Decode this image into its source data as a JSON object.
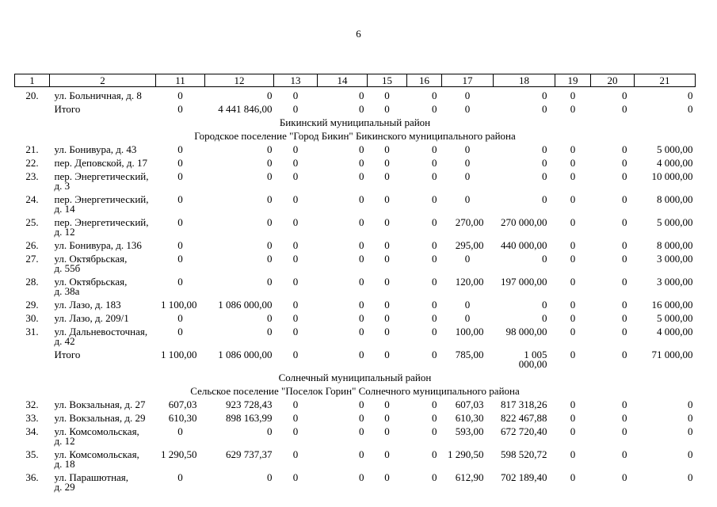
{
  "page_number": "6",
  "table": {
    "columns": [
      "1",
      "2",
      "11",
      "12",
      "13",
      "14",
      "15",
      "16",
      "17",
      "18",
      "19",
      "20",
      "21"
    ],
    "rows": [
      {
        "type": "data",
        "num": "20.",
        "address": "ул. Больничная, д. 8",
        "values": [
          "0",
          "0",
          "0",
          "0",
          "0",
          "0",
          "0",
          "0",
          "0",
          "0",
          "0"
        ]
      },
      {
        "type": "total",
        "label": "Итого",
        "values": [
          "0",
          "4 441 846,00",
          "0",
          "0",
          "0",
          "0",
          "0",
          "0",
          "0",
          "0",
          "0"
        ]
      },
      {
        "type": "section",
        "text": "Бикинский муниципальный район"
      },
      {
        "type": "section",
        "text": "Городское поселение \"Город Бикин\" Бикинского муниципального района"
      },
      {
        "type": "data",
        "num": "21.",
        "address": "ул. Бонивура, д. 43",
        "values": [
          "0",
          "0",
          "0",
          "0",
          "0",
          "0",
          "0",
          "0",
          "0",
          "0",
          "5 000,00"
        ]
      },
      {
        "type": "data",
        "num": "22.",
        "address": "пер. Деповской, д. 17",
        "values": [
          "0",
          "0",
          "0",
          "0",
          "0",
          "0",
          "0",
          "0",
          "0",
          "0",
          "4 000,00"
        ]
      },
      {
        "type": "data",
        "num": "23.",
        "address": "пер. Энергетический,\nд. 3",
        "values": [
          "0",
          "0",
          "0",
          "0",
          "0",
          "0",
          "0",
          "0",
          "0",
          "0",
          "10 000,00"
        ]
      },
      {
        "type": "data",
        "num": "24.",
        "address": "пер. Энергетический,\nд. 14",
        "values": [
          "0",
          "0",
          "0",
          "0",
          "0",
          "0",
          "0",
          "0",
          "0",
          "0",
          "8 000,00"
        ]
      },
      {
        "type": "data",
        "num": "25.",
        "address": "пер. Энергетический,\nд. 12",
        "values": [
          "0",
          "0",
          "0",
          "0",
          "0",
          "0",
          "270,00",
          "270 000,00",
          "0",
          "0",
          "5 000,00"
        ]
      },
      {
        "type": "data",
        "num": "26.",
        "address": "ул. Бонивура, д. 136",
        "values": [
          "0",
          "0",
          "0",
          "0",
          "0",
          "0",
          "295,00",
          "440 000,00",
          "0",
          "0",
          "8 000,00"
        ]
      },
      {
        "type": "data",
        "num": "27.",
        "address": "ул. Октябрьская,\nд. 55б",
        "values": [
          "0",
          "0",
          "0",
          "0",
          "0",
          "0",
          "0",
          "0",
          "0",
          "0",
          "3 000,00"
        ]
      },
      {
        "type": "data",
        "num": "28.",
        "address": "ул. Октябрьская,\nд. 38а",
        "values": [
          "0",
          "0",
          "0",
          "0",
          "0",
          "0",
          "120,00",
          "197 000,00",
          "0",
          "0",
          "3 000,00"
        ]
      },
      {
        "type": "data",
        "num": "29.",
        "address": "ул. Лазо, д. 183",
        "values": [
          "1 100,00",
          "1 086 000,00",
          "0",
          "0",
          "0",
          "0",
          "0",
          "0",
          "0",
          "0",
          "16 000,00"
        ]
      },
      {
        "type": "data",
        "num": "30.",
        "address": "ул. Лазо, д. 209/1",
        "values": [
          "0",
          "0",
          "0",
          "0",
          "0",
          "0",
          "0",
          "0",
          "0",
          "0",
          "5 000,00"
        ]
      },
      {
        "type": "data",
        "num": "31.",
        "address": "ул. Дальневосточная,\nд. 42",
        "values": [
          "0",
          "0",
          "0",
          "0",
          "0",
          "0",
          "100,00",
          "98 000,00",
          "0",
          "0",
          "4 000,00"
        ]
      },
      {
        "type": "total",
        "label": "Итого",
        "values": [
          "1 100,00",
          "1 086 000,00",
          "0",
          "0",
          "0",
          "0",
          "785,00",
          "1 005 000,00",
          "0",
          "0",
          "71 000,00"
        ]
      },
      {
        "type": "section",
        "text": "Солнечный муниципальный  район"
      },
      {
        "type": "section",
        "text": "Сельское поселение \"Поселок Горин\" Солнечного муниципального района"
      },
      {
        "type": "data",
        "num": "32.",
        "address": "ул. Вокзальная, д. 27",
        "values": [
          "607,03",
          "923 728,43",
          "0",
          "0",
          "0",
          "0",
          "607,03",
          "817 318,26",
          "0",
          "0",
          "0"
        ]
      },
      {
        "type": "data",
        "num": "33.",
        "address": "ул. Вокзальная, д. 29",
        "values": [
          "610,30",
          "898 163,99",
          "0",
          "0",
          "0",
          "0",
          "610,30",
          "822 467,88",
          "0",
          "0",
          "0"
        ]
      },
      {
        "type": "data",
        "num": "34.",
        "address": "ул. Комсомольская,\nд. 12",
        "values": [
          "0",
          "0",
          "0",
          "0",
          "0",
          "0",
          "593,00",
          "672 720,40",
          "0",
          "0",
          "0"
        ]
      },
      {
        "type": "data",
        "num": "35.",
        "address": "ул. Комсомольская,\nд. 18",
        "values": [
          "1 290,50",
          "629 737,37",
          "0",
          "0",
          "0",
          "0",
          "1 290,50",
          "598 520,72",
          "0",
          "0",
          "0"
        ]
      },
      {
        "type": "data",
        "num": "36.",
        "address": "ул. Парашютная,\nд. 29",
        "values": [
          "0",
          "0",
          "0",
          "0",
          "0",
          "0",
          "612,90",
          "702 189,40",
          "0",
          "0",
          "0"
        ]
      }
    ]
  }
}
